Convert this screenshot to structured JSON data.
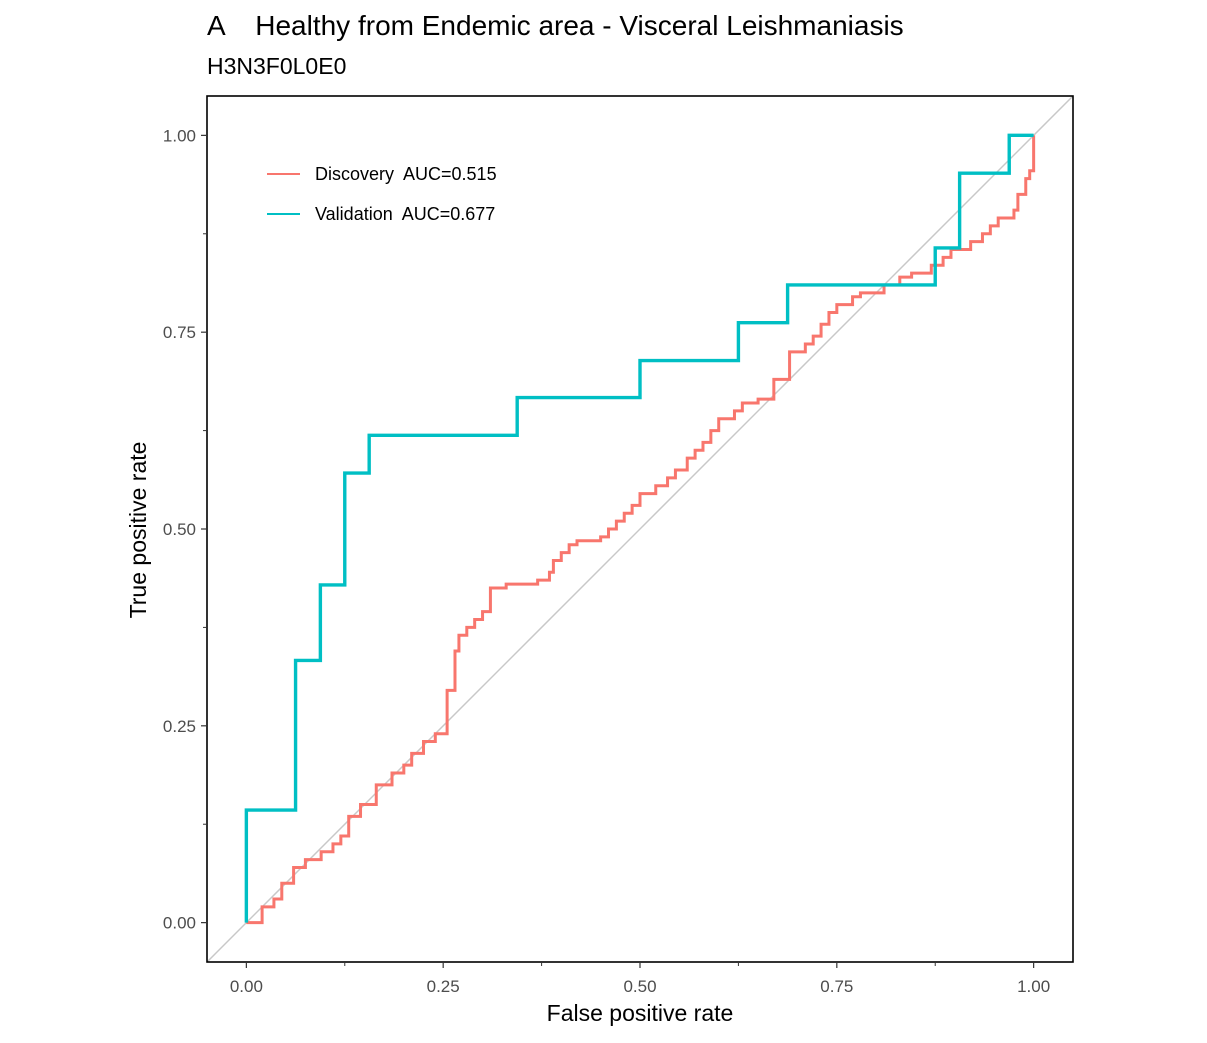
{
  "chart_data": {
    "type": "line",
    "title": "A    Healthy from Endemic area - Visceral Leishmaniasis",
    "subtitle": "H3N3F0L0E0",
    "xlabel": "False positive rate",
    "ylabel": "True positive rate",
    "xlim": [
      -0.05,
      1.05
    ],
    "ylim": [
      -0.05,
      1.05
    ],
    "xticks": [
      0,
      0.25,
      0.5,
      0.75,
      1
    ],
    "yticks": [
      0,
      0.25,
      0.5,
      0.75,
      1
    ],
    "xtick_labels": [
      "0.00",
      "0.25",
      "0.50",
      "0.75",
      "1.00"
    ],
    "ytick_labels": [
      "0.00",
      "0.25",
      "0.50",
      "0.75",
      "1.00"
    ],
    "grid": false,
    "legend_position": "top-left",
    "diagonal_reference": true,
    "series": [
      {
        "name": "Discovery  AUC=0.515",
        "color": "#F8766D",
        "step": true,
        "points": [
          [
            0.0,
            0.0
          ],
          [
            0.02,
            0.0
          ],
          [
            0.02,
            0.02
          ],
          [
            0.035,
            0.02
          ],
          [
            0.035,
            0.03
          ],
          [
            0.045,
            0.03
          ],
          [
            0.045,
            0.05
          ],
          [
            0.06,
            0.05
          ],
          [
            0.06,
            0.07
          ],
          [
            0.075,
            0.07
          ],
          [
            0.075,
            0.08
          ],
          [
            0.095,
            0.08
          ],
          [
            0.095,
            0.09
          ],
          [
            0.11,
            0.09
          ],
          [
            0.11,
            0.1
          ],
          [
            0.12,
            0.1
          ],
          [
            0.12,
            0.11
          ],
          [
            0.13,
            0.11
          ],
          [
            0.13,
            0.135
          ],
          [
            0.145,
            0.135
          ],
          [
            0.145,
            0.15
          ],
          [
            0.165,
            0.15
          ],
          [
            0.165,
            0.175
          ],
          [
            0.185,
            0.175
          ],
          [
            0.185,
            0.19
          ],
          [
            0.2,
            0.19
          ],
          [
            0.2,
            0.2
          ],
          [
            0.21,
            0.2
          ],
          [
            0.21,
            0.215
          ],
          [
            0.225,
            0.215
          ],
          [
            0.225,
            0.23
          ],
          [
            0.24,
            0.23
          ],
          [
            0.24,
            0.24
          ],
          [
            0.255,
            0.24
          ],
          [
            0.255,
            0.295
          ],
          [
            0.265,
            0.295
          ],
          [
            0.265,
            0.345
          ],
          [
            0.27,
            0.345
          ],
          [
            0.27,
            0.365
          ],
          [
            0.28,
            0.365
          ],
          [
            0.28,
            0.375
          ],
          [
            0.29,
            0.375
          ],
          [
            0.29,
            0.385
          ],
          [
            0.3,
            0.385
          ],
          [
            0.3,
            0.395
          ],
          [
            0.31,
            0.395
          ],
          [
            0.31,
            0.425
          ],
          [
            0.33,
            0.425
          ],
          [
            0.33,
            0.43
          ],
          [
            0.37,
            0.43
          ],
          [
            0.37,
            0.435
          ],
          [
            0.385,
            0.435
          ],
          [
            0.385,
            0.445
          ],
          [
            0.39,
            0.445
          ],
          [
            0.39,
            0.46
          ],
          [
            0.4,
            0.46
          ],
          [
            0.4,
            0.47
          ],
          [
            0.41,
            0.47
          ],
          [
            0.41,
            0.48
          ],
          [
            0.42,
            0.48
          ],
          [
            0.42,
            0.485
          ],
          [
            0.45,
            0.485
          ],
          [
            0.45,
            0.49
          ],
          [
            0.46,
            0.49
          ],
          [
            0.46,
            0.5
          ],
          [
            0.47,
            0.5
          ],
          [
            0.47,
            0.51
          ],
          [
            0.48,
            0.51
          ],
          [
            0.48,
            0.52
          ],
          [
            0.49,
            0.52
          ],
          [
            0.49,
            0.53
          ],
          [
            0.5,
            0.53
          ],
          [
            0.5,
            0.545
          ],
          [
            0.52,
            0.545
          ],
          [
            0.52,
            0.555
          ],
          [
            0.535,
            0.555
          ],
          [
            0.535,
            0.565
          ],
          [
            0.545,
            0.565
          ],
          [
            0.545,
            0.575
          ],
          [
            0.56,
            0.575
          ],
          [
            0.56,
            0.59
          ],
          [
            0.57,
            0.59
          ],
          [
            0.57,
            0.6
          ],
          [
            0.58,
            0.6
          ],
          [
            0.58,
            0.61
          ],
          [
            0.59,
            0.61
          ],
          [
            0.59,
            0.625
          ],
          [
            0.6,
            0.625
          ],
          [
            0.6,
            0.64
          ],
          [
            0.62,
            0.64
          ],
          [
            0.62,
            0.65
          ],
          [
            0.63,
            0.65
          ],
          [
            0.63,
            0.66
          ],
          [
            0.65,
            0.66
          ],
          [
            0.65,
            0.665
          ],
          [
            0.67,
            0.665
          ],
          [
            0.67,
            0.69
          ],
          [
            0.69,
            0.69
          ],
          [
            0.69,
            0.725
          ],
          [
            0.71,
            0.725
          ],
          [
            0.71,
            0.735
          ],
          [
            0.72,
            0.735
          ],
          [
            0.72,
            0.745
          ],
          [
            0.73,
            0.745
          ],
          [
            0.73,
            0.76
          ],
          [
            0.74,
            0.76
          ],
          [
            0.74,
            0.775
          ],
          [
            0.75,
            0.775
          ],
          [
            0.75,
            0.785
          ],
          [
            0.77,
            0.785
          ],
          [
            0.77,
            0.795
          ],
          [
            0.78,
            0.795
          ],
          [
            0.78,
            0.8
          ],
          [
            0.81,
            0.8
          ],
          [
            0.81,
            0.81
          ],
          [
            0.83,
            0.81
          ],
          [
            0.83,
            0.82
          ],
          [
            0.845,
            0.82
          ],
          [
            0.845,
            0.825
          ],
          [
            0.87,
            0.825
          ],
          [
            0.87,
            0.835
          ],
          [
            0.885,
            0.835
          ],
          [
            0.885,
            0.845
          ],
          [
            0.895,
            0.845
          ],
          [
            0.895,
            0.855
          ],
          [
            0.92,
            0.855
          ],
          [
            0.92,
            0.865
          ],
          [
            0.935,
            0.865
          ],
          [
            0.935,
            0.875
          ],
          [
            0.945,
            0.875
          ],
          [
            0.945,
            0.885
          ],
          [
            0.955,
            0.885
          ],
          [
            0.955,
            0.895
          ],
          [
            0.975,
            0.895
          ],
          [
            0.975,
            0.905
          ],
          [
            0.98,
            0.905
          ],
          [
            0.98,
            0.925
          ],
          [
            0.99,
            0.925
          ],
          [
            0.99,
            0.945
          ],
          [
            0.995,
            0.945
          ],
          [
            0.995,
            0.955
          ],
          [
            1.0,
            0.955
          ],
          [
            1.0,
            1.0
          ]
        ]
      },
      {
        "name": "Validation  AUC=0.677",
        "color": "#00BFC4",
        "step": true,
        "points": [
          [
            0.0,
            0.0
          ],
          [
            0.0,
            0.143
          ],
          [
            0.0625,
            0.143
          ],
          [
            0.0625,
            0.333
          ],
          [
            0.094,
            0.333
          ],
          [
            0.094,
            0.429
          ],
          [
            0.125,
            0.429
          ],
          [
            0.125,
            0.571
          ],
          [
            0.156,
            0.571
          ],
          [
            0.156,
            0.619
          ],
          [
            0.344,
            0.619
          ],
          [
            0.344,
            0.667
          ],
          [
            0.5,
            0.667
          ],
          [
            0.5,
            0.714
          ],
          [
            0.625,
            0.714
          ],
          [
            0.625,
            0.762
          ],
          [
            0.6875,
            0.762
          ],
          [
            0.6875,
            0.81
          ],
          [
            0.875,
            0.81
          ],
          [
            0.875,
            0.857
          ],
          [
            0.906,
            0.857
          ],
          [
            0.906,
            0.952
          ],
          [
            0.969,
            0.952
          ],
          [
            0.969,
            1.0
          ],
          [
            1.0,
            1.0
          ]
        ]
      }
    ]
  }
}
